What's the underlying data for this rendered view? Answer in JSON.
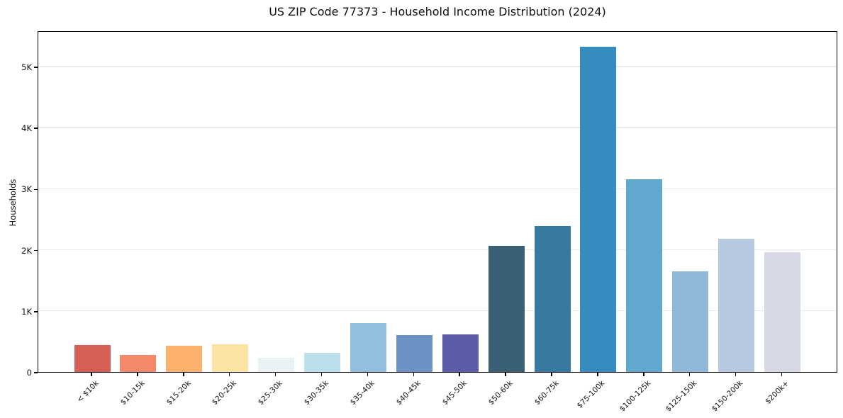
{
  "chart_data": {
    "type": "bar",
    "title": "US ZIP Code 77373 - Household Income Distribution (2024)",
    "xlabel": "",
    "ylabel": "Households",
    "categories": [
      "< $10k",
      "$10-15k",
      "$15-20k",
      "$20-25k",
      "$25-30k",
      "$30-35k",
      "$35-40k",
      "$40-45k",
      "$45-50k",
      "$50-60k",
      "$60-75k",
      "$75-100k",
      "$100-125k",
      "$125-150k",
      "$150-200k",
      "$200k+"
    ],
    "values": [
      440,
      275,
      430,
      450,
      230,
      310,
      805,
      600,
      610,
      2060,
      2390,
      5320,
      3150,
      1650,
      2180,
      1960
    ],
    "bar_colors": [
      "#d65f55",
      "#f4886b",
      "#f9b16b",
      "#fde3a1",
      "#e8f2f5",
      "#bbdfeb",
      "#92bfdd",
      "#6b92c4",
      "#5c5ca8",
      "#3a6078",
      "#3879a0",
      "#368cbf",
      "#60a8cd",
      "#90b8d8",
      "#b7c9e0",
      "#d7d9e7"
    ],
    "ytick_labels": [
      "0",
      "1K",
      "2K",
      "3K",
      "4K",
      "5K"
    ],
    "ytick_values": [
      0,
      1000,
      2000,
      3000,
      4000,
      5000
    ],
    "ylim": [
      0,
      5590
    ],
    "grid": "horizontal",
    "legend": "none",
    "background_color": "#ffffff",
    "axis_color": "#000000",
    "gridline_color": "#ececec"
  }
}
